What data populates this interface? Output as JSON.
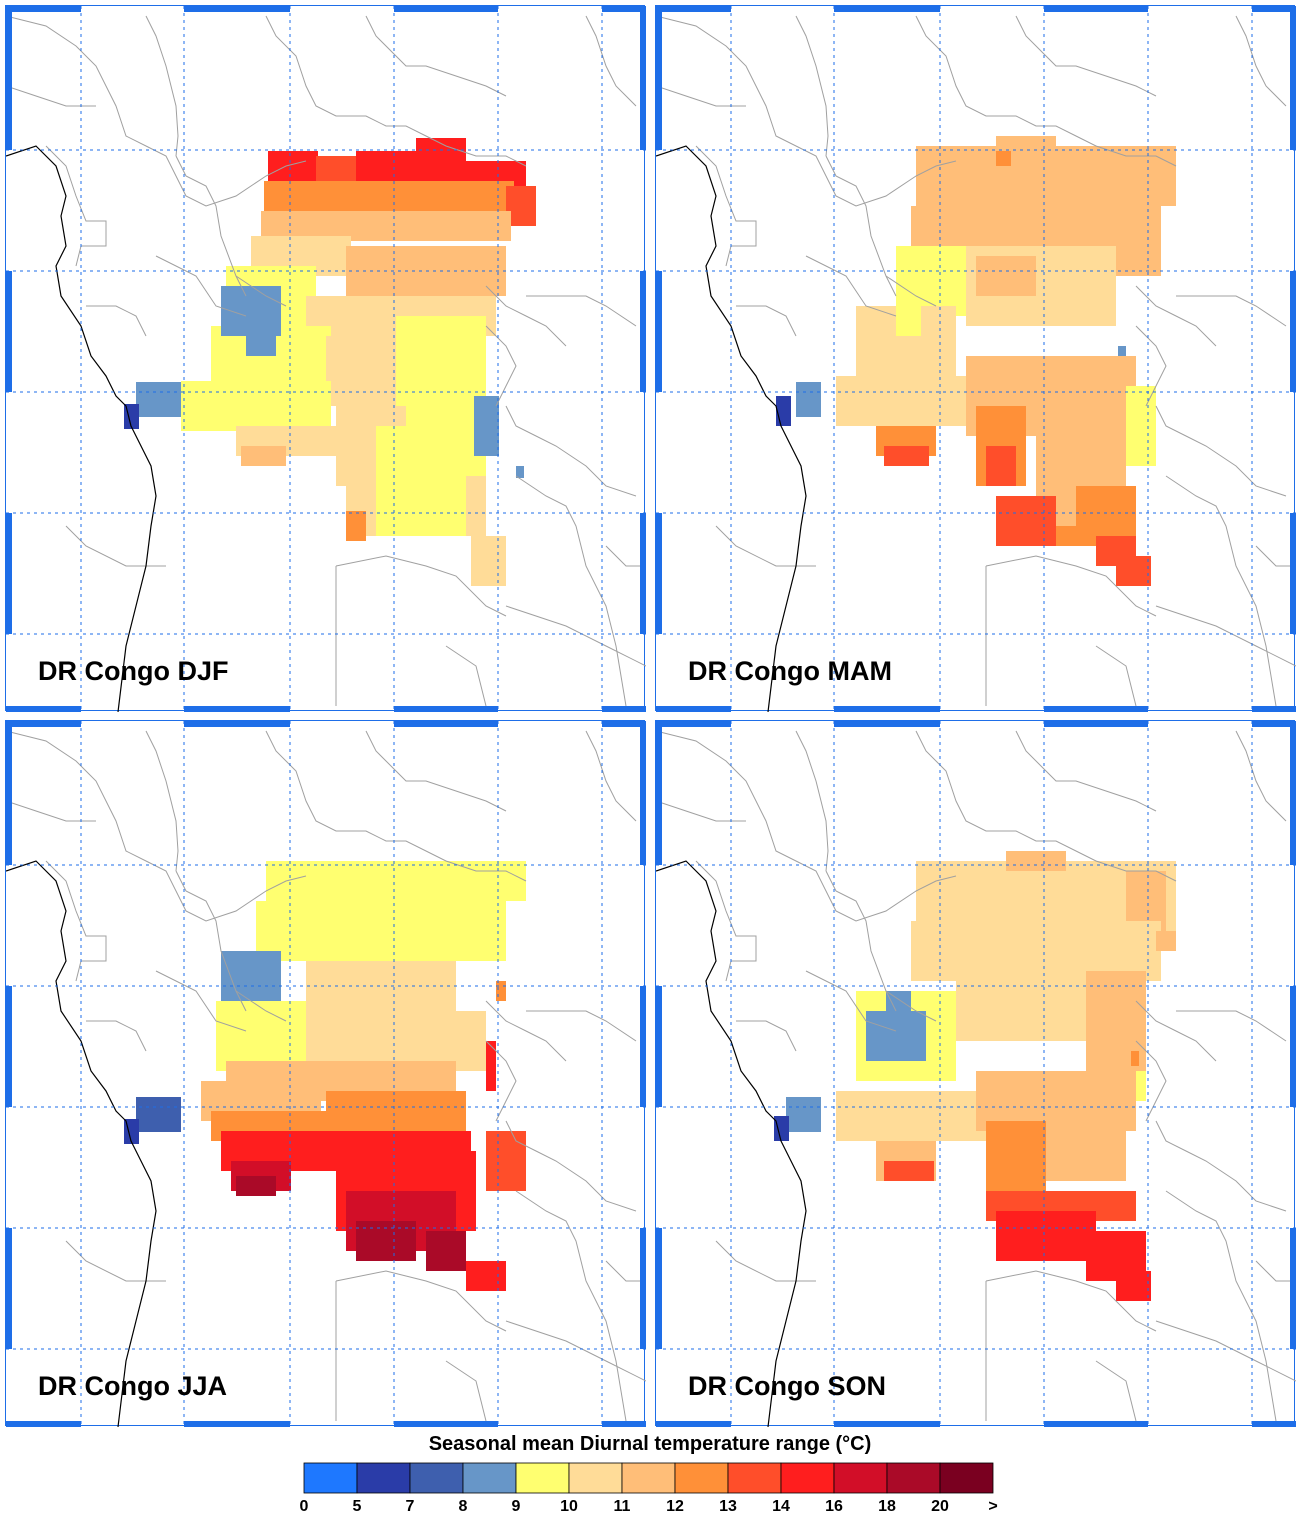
{
  "panels": [
    {
      "id": "djf",
      "title": "DR Congo DJF",
      "season": "DJF"
    },
    {
      "id": "mam",
      "title": "DR Congo MAM",
      "season": "MAM"
    },
    {
      "id": "jja",
      "title": "DR Congo JJA",
      "season": "JJA"
    },
    {
      "id": "son",
      "title": "DR Congo SON",
      "season": "SON"
    }
  ],
  "legend": {
    "title_prefix": "Seasonal mean Diurnal temperature range (",
    "title_unit": "°C",
    "title_suffix": ")",
    "ticks": [
      "0",
      "5",
      "7",
      "8",
      "9",
      "10",
      "11",
      "12",
      "13",
      "14",
      "16",
      "18",
      "20",
      ">"
    ],
    "colors": [
      "#1e78ff",
      "#2a3ca8",
      "#3e5fae",
      "#6796c8",
      "#ffff70",
      "#ffdc98",
      "#ffbe78",
      "#ff9038",
      "#ff4e2a",
      "#ff1e1e",
      "#d20e28",
      "#aa0a28",
      "#7a0020"
    ]
  },
  "colors": {
    "frame": "#1e6ee8",
    "gridline": "#1e6ee8",
    "border_line": "#a0a0a0",
    "coastline": "#000000"
  },
  "chart_data": {
    "type": "heatmap",
    "title": "Seasonal mean Diurnal temperature range (°C)",
    "legend_bins": [
      {
        "range": "0-5",
        "color": "#1e78ff"
      },
      {
        "range": "5-7",
        "color": "#2a3ca8"
      },
      {
        "range": "7-8",
        "color": "#3e5fae"
      },
      {
        "range": "8-9",
        "color": "#6796c8"
      },
      {
        "range": "9-10",
        "color": "#ffff70"
      },
      {
        "range": "10-11",
        "color": "#ffdc98"
      },
      {
        "range": "11-12",
        "color": "#ffbe78"
      },
      {
        "range": "12-13",
        "color": "#ff9038"
      },
      {
        "range": "13-14",
        "color": "#ff4e2a"
      },
      {
        "range": "14-16",
        "color": "#ff1e1e"
      },
      {
        "range": "16-18",
        "color": "#d20e28"
      },
      {
        "range": "18-20",
        "color": "#aa0a28"
      },
      {
        "range": ">20",
        "color": "#7a0020"
      }
    ],
    "seasons": [
      "DJF",
      "MAM",
      "JJA",
      "SON"
    ]
  }
}
